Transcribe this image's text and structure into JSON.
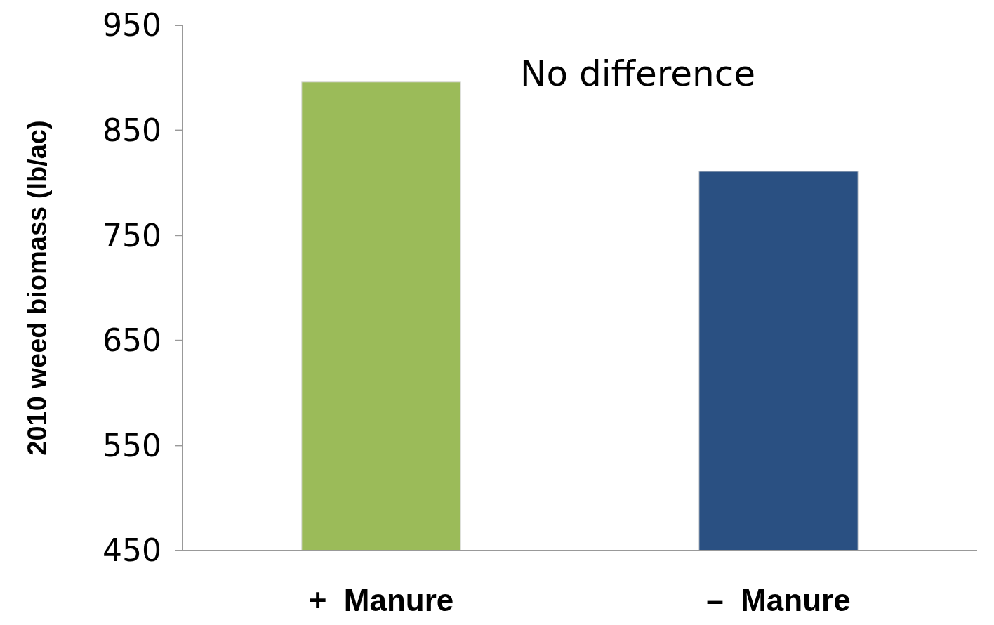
{
  "chart_data": {
    "type": "bar",
    "ylabel": "2010 weed biomass (lb/ac)",
    "categories": [
      "+  Manure",
      "–  Manure"
    ],
    "values": [
      896,
      811
    ],
    "colors": [
      "#9bbb59",
      "#2a5082"
    ],
    "ylim": [
      450,
      950
    ],
    "yticks": [
      450,
      550,
      650,
      750,
      850,
      950
    ],
    "grid": false,
    "annotations": [
      "No difference"
    ]
  }
}
